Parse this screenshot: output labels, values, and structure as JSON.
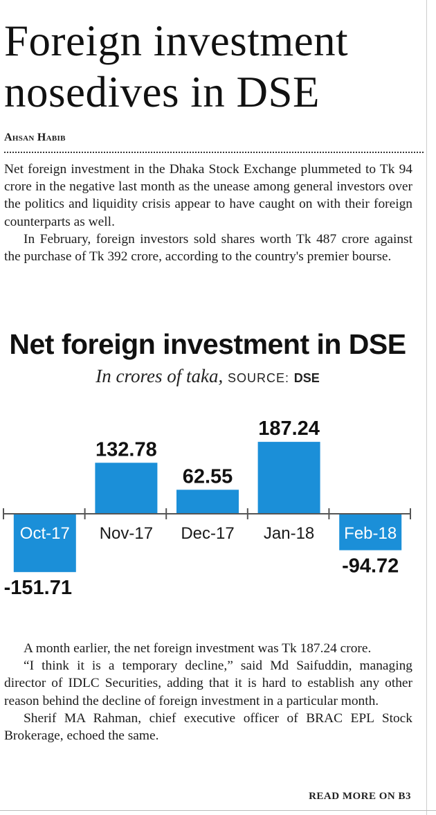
{
  "article": {
    "headline_line1": "Foreign investment",
    "headline_line2": "nosedives in DSE",
    "byline": "Ahsan Habib",
    "intro_p1": "Net foreign investment in the Dhaka Stock Exchange plummeted to Tk 94 crore in the negative last month as the unease among general investors over the politics and liquidity crisis appear to have caught on with their foreign counterparts as well.",
    "intro_p2": "In February, foreign investors sold shares worth Tk 487 crore against the purchase of Tk 392 crore, according to the country's premier bourse.",
    "closing_p1": "A month earlier, the net foreign investment was Tk 187.24 crore.",
    "closing_p2": "“I think it is a temporary decline,” said Md Saifuddin, managing director of IDLC Securities, adding that it is hard to establish any other reason behind the decline of foreign investment in a particular month.",
    "closing_p3": "Sherif MA Rahman, chief executive officer of BRAC EPL Stock Brokerage, echoed the same.",
    "read_more": "READ MORE ON B3"
  },
  "chart_data": {
    "type": "bar",
    "title": "Net foreign investment in DSE",
    "subtitle": "In crores of taka,",
    "source_label": "SOURCE:",
    "source_value": "DSE",
    "categories": [
      "Oct-17",
      "Nov-17",
      "Dec-17",
      "Jan-18",
      "Feb-18"
    ],
    "values": [
      -151.71,
      132.78,
      62.55,
      187.24,
      -94.72
    ],
    "value_labels": [
      "-151.71",
      "132.78",
      "62.55",
      "187.24",
      "-94.72"
    ],
    "bar_color": "#1b8fd8",
    "negative_label_color": "#ffffff",
    "ylim": [
      -151.71,
      187.24
    ],
    "grid": false,
    "legend": "none"
  }
}
